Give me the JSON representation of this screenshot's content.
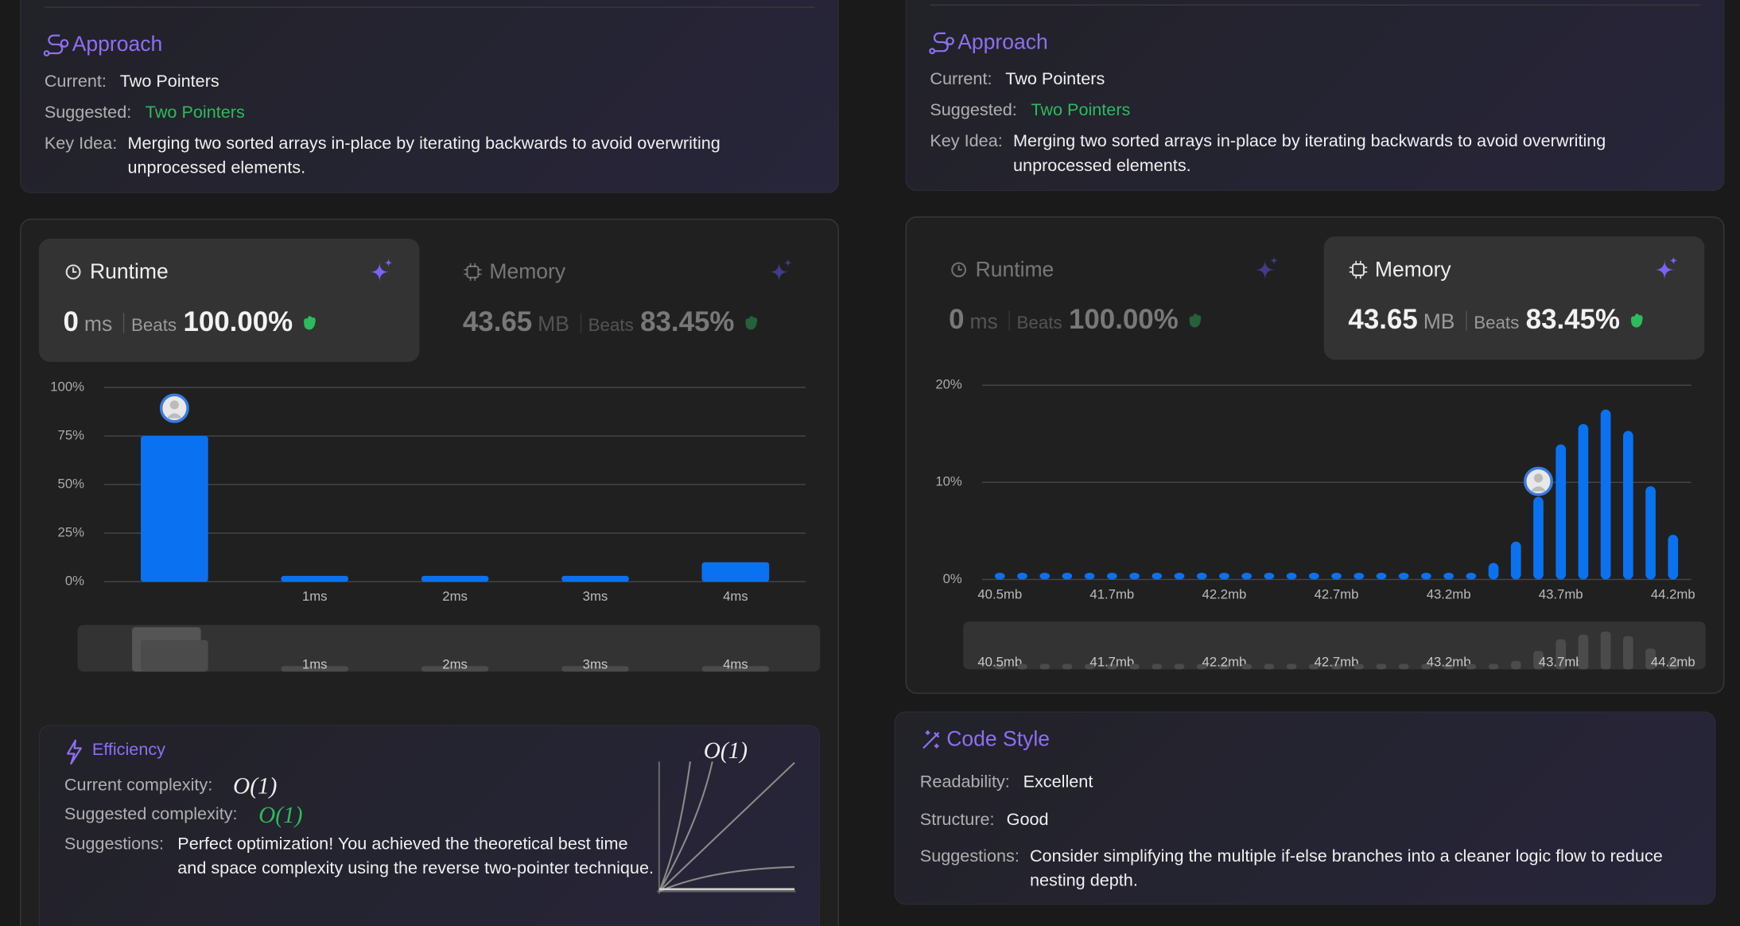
{
  "panels": [
    {
      "approach": {
        "title": "Approach",
        "current_label": "Current:",
        "current": "Two Pointers",
        "suggested_label": "Suggested:",
        "suggested": "Two Pointers",
        "key_idea_label": "Key Idea:",
        "key_idea": "Merging two sorted arrays in-place by iterating backwards to avoid overwriting unprocessed elements."
      },
      "metrics": [
        {
          "title": "Runtime",
          "value": "0",
          "unit": "ms",
          "beats_label": "Beats",
          "beats": "100.00%"
        },
        {
          "title": "Memory",
          "value": "43.65",
          "unit": "MB",
          "beats_label": "Beats",
          "beats": "83.45%"
        }
      ],
      "chart_data": {
        "type": "bar",
        "categories": [
          null,
          "1ms",
          "2ms",
          "3ms",
          "4ms"
        ],
        "values": [
          75,
          3,
          3,
          3,
          10
        ],
        "ylim": [
          0,
          100
        ],
        "yticks": [
          {
            "value": 0,
            "label": "0%"
          },
          {
            "value": 25,
            "label": "25%"
          },
          {
            "value": 50,
            "label": "50%"
          },
          {
            "value": 75,
            "label": "75%"
          },
          {
            "value": 100,
            "label": "100%"
          }
        ],
        "color": "#0a72f0",
        "grid": true,
        "marker_index": 0
      },
      "efficiency": {
        "title": "Efficiency",
        "current_label": "Current complexity:",
        "current": "O(1)",
        "suggested_label": "Suggested complexity:",
        "suggested": "O(1)",
        "suggestions_label": "Suggestions:",
        "suggestions": "Perfect optimization! You achieved the theoretical best time and space complexity using the reverse two-pointer technique.",
        "graph_label": "O(1)"
      }
    },
    {
      "approach": {
        "title": "Approach",
        "current_label": "Current:",
        "current": "Two Pointers",
        "suggested_label": "Suggested:",
        "suggested": "Two Pointers",
        "key_idea_label": "Key Idea:",
        "key_idea": "Merging two sorted arrays in-place by iterating backwards to avoid overwriting unprocessed elements."
      },
      "metrics": [
        {
          "title": "Runtime",
          "value": "0",
          "unit": "ms",
          "beats_label": "Beats",
          "beats": "100.00%"
        },
        {
          "title": "Memory",
          "value": "43.65",
          "unit": "MB",
          "beats_label": "Beats",
          "beats": "83.45%"
        }
      ],
      "chart_data": {
        "type": "bar",
        "categories": [
          "40.5mb",
          null,
          null,
          null,
          null,
          "41.7mb",
          null,
          null,
          null,
          null,
          "42.2mb",
          null,
          null,
          null,
          null,
          "42.7mb",
          null,
          null,
          null,
          null,
          "43.2mb",
          null,
          null,
          null,
          null,
          "43.7mb",
          null,
          null,
          null,
          null,
          "44.2mb"
        ],
        "values": [
          0.7,
          0.7,
          0.7,
          0.7,
          0.7,
          0.7,
          0.7,
          0.7,
          0.7,
          0.7,
          0.7,
          0.7,
          0.7,
          0.7,
          0.7,
          0.7,
          0.7,
          0.7,
          0.7,
          0.7,
          0.7,
          0.7,
          1.7,
          3.9,
          8.5,
          13.9,
          16,
          17.5,
          15.3,
          9.6,
          4.6
        ],
        "ylim": [
          0,
          20
        ],
        "yticks": [
          {
            "value": 0,
            "label": "0%"
          },
          {
            "value": 10,
            "label": "10%"
          },
          {
            "value": 20,
            "label": "20%"
          }
        ],
        "color": "#0a72f0",
        "grid": true,
        "marker_index": 24
      },
      "code_style": {
        "title": "Code Style",
        "readability_label": "Readability:",
        "readability": "Excellent",
        "structure_label": "Structure:",
        "structure": "Good",
        "suggestions_label": "Suggestions:",
        "suggestions": "Consider simplifying the multiple if-else branches into a cleaner logic flow to reduce nesting depth."
      }
    }
  ]
}
